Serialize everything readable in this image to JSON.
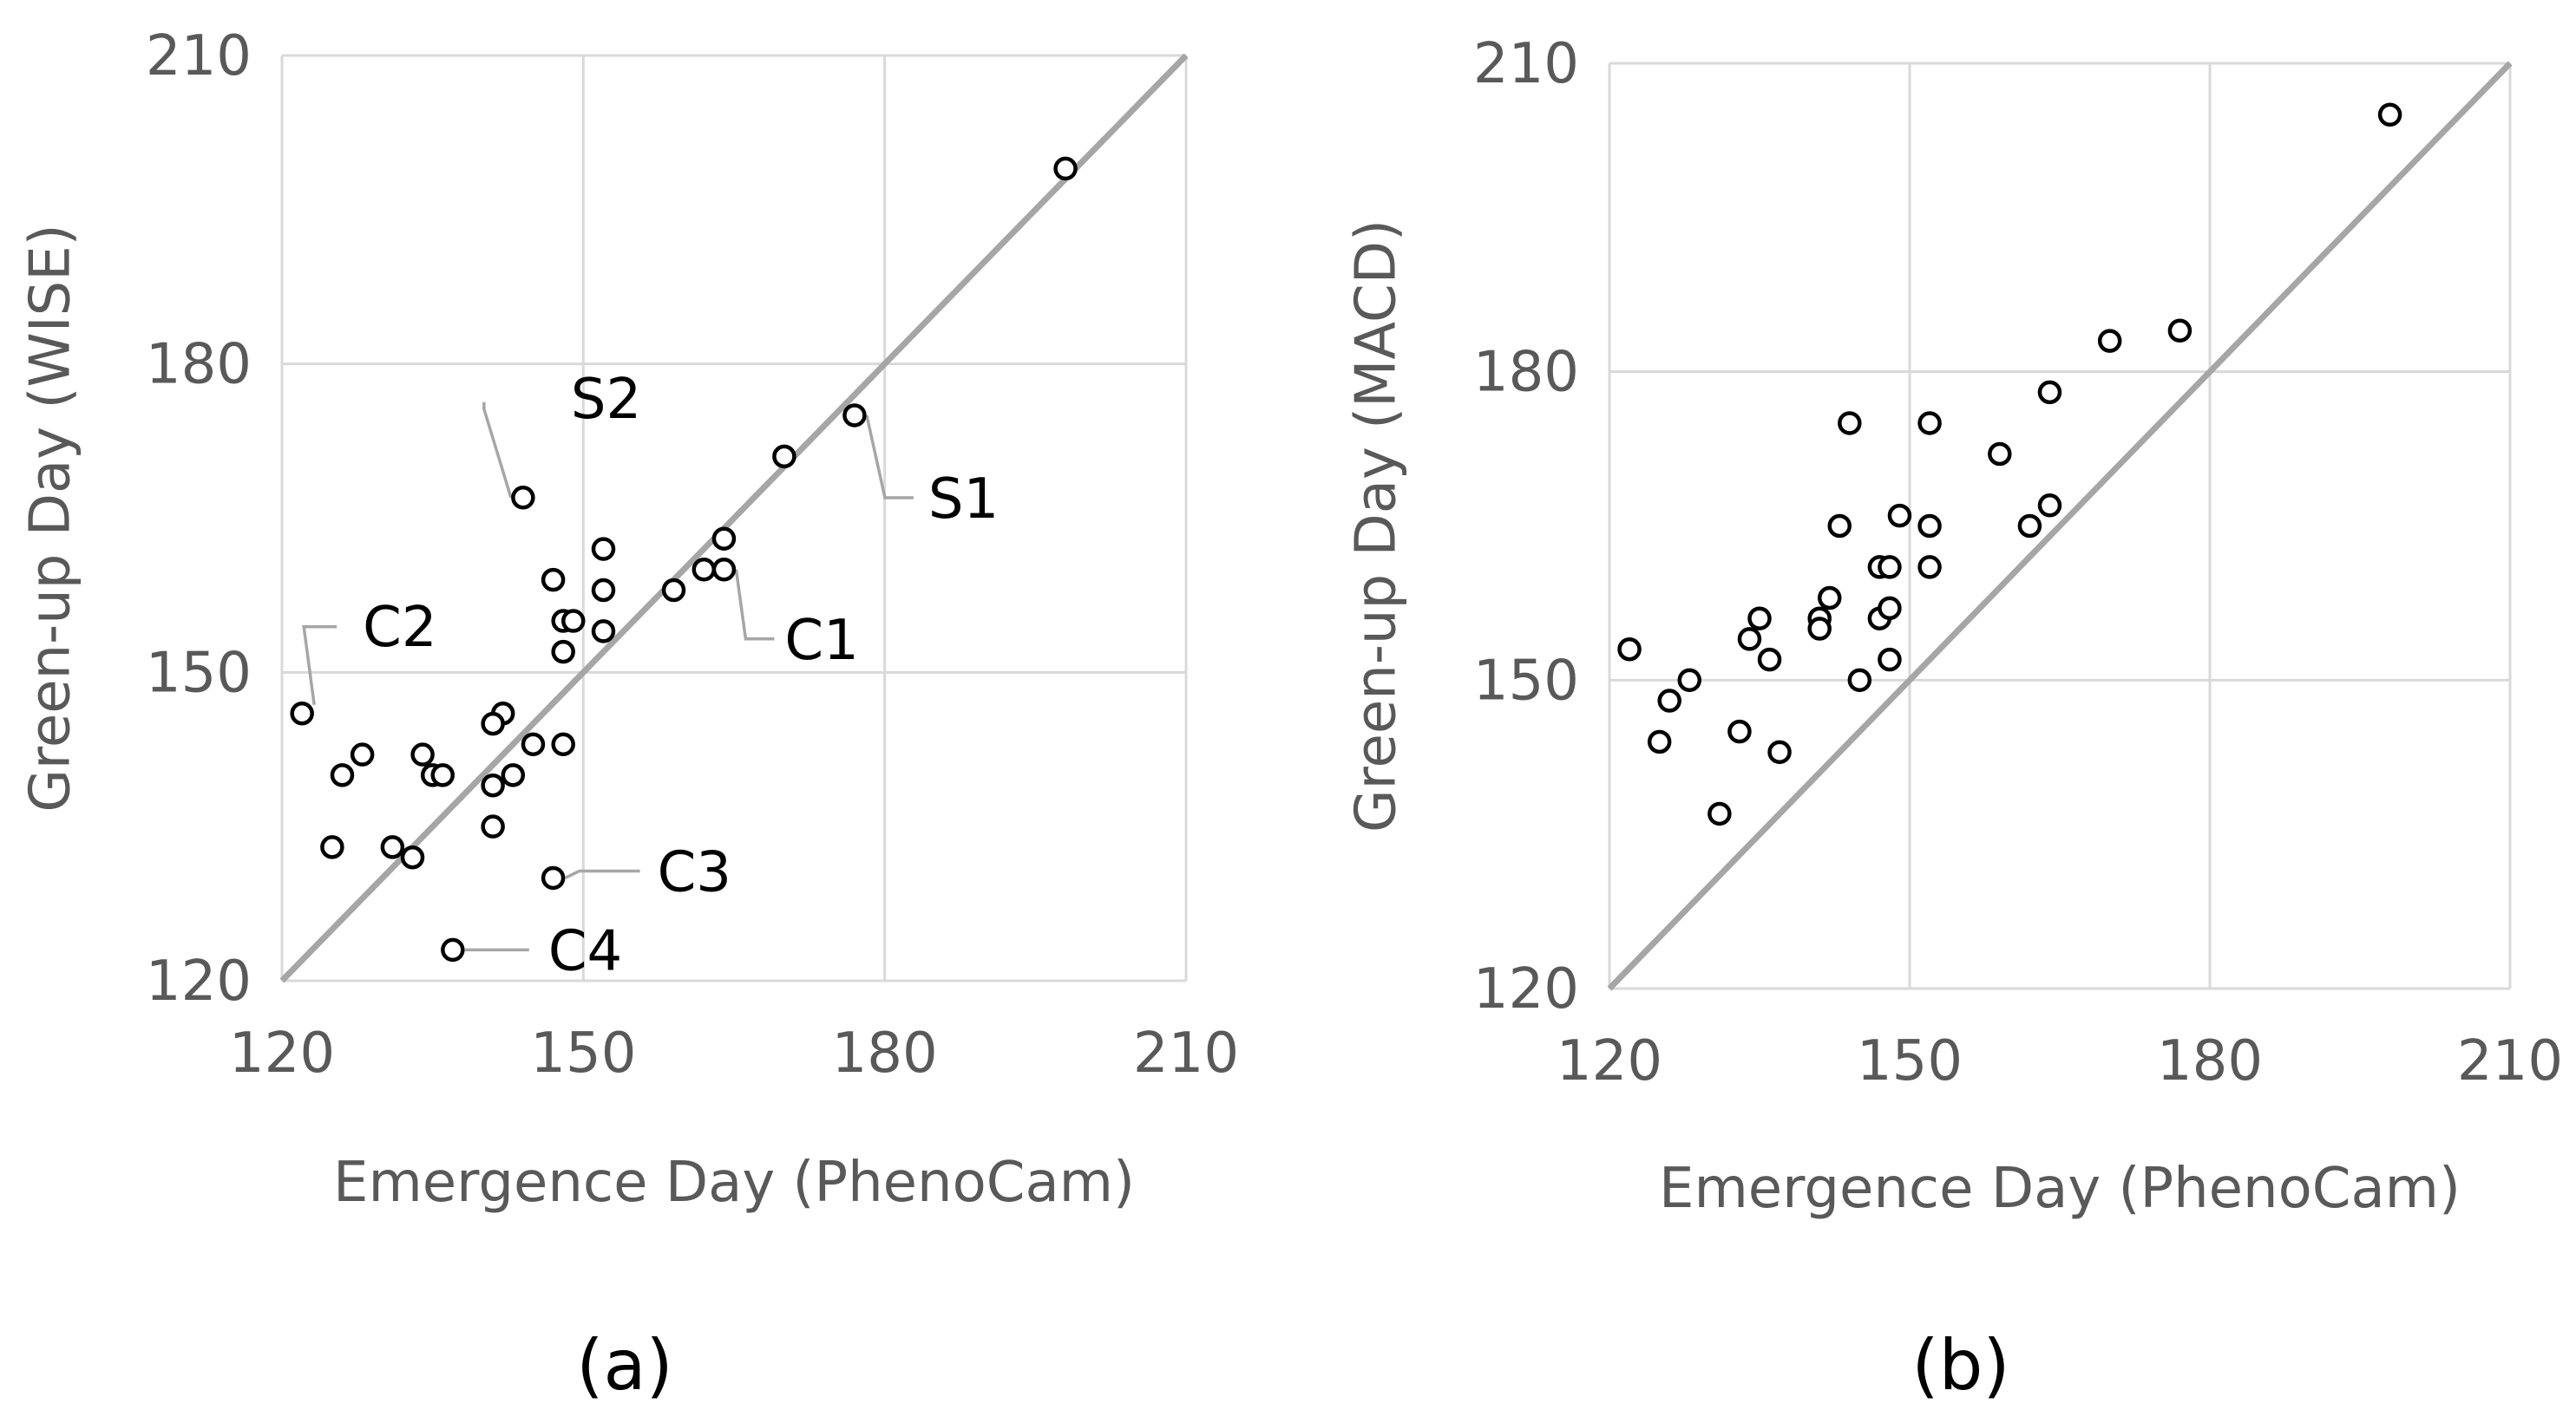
{
  "chart_data": [
    {
      "type": "scatter",
      "panel_label": "(a)",
      "xlabel": "Emergence Day (PhenoCam)",
      "ylabel": "Green-up Day (WISE)",
      "xlim": [
        120,
        210
      ],
      "ylim": [
        120,
        210
      ],
      "xticks": [
        120,
        150,
        180,
        210
      ],
      "yticks": [
        120,
        150,
        180,
        210
      ],
      "grid": true,
      "reference_line": "1:1",
      "series": [
        {
          "name": "sites",
          "points": [
            [
              198,
              199
            ],
            [
              177,
              175
            ],
            [
              170,
              171
            ],
            [
              144,
              167
            ],
            [
              164,
              163
            ],
            [
              152,
              162
            ],
            [
              162,
              160
            ],
            [
              164,
              160
            ],
            [
              159,
              158
            ],
            [
              152,
              158
            ],
            [
              147,
              159
            ],
            [
              148,
              155
            ],
            [
              149,
              155
            ],
            [
              152,
              154
            ],
            [
              148,
              152
            ],
            [
              122,
              146
            ],
            [
              142,
              146
            ],
            [
              141,
              145
            ],
            [
              128,
              142
            ],
            [
              134,
              142
            ],
            [
              126,
              140
            ],
            [
              135,
              140
            ],
            [
              136,
              140
            ],
            [
              143,
              140
            ],
            [
              145,
              143
            ],
            [
              148,
              143
            ],
            [
              141,
              139
            ],
            [
              141,
              135
            ],
            [
              125,
              133
            ],
            [
              131,
              133
            ],
            [
              133,
              132
            ],
            [
              147,
              130
            ],
            [
              137,
              123
            ]
          ]
        }
      ],
      "annotations": [
        {
          "label": "S2",
          "point": [
            144,
            167
          ]
        },
        {
          "label": "S1",
          "point": [
            177,
            175
          ]
        },
        {
          "label": "C1",
          "point": [
            164,
            160
          ]
        },
        {
          "label": "C2",
          "point": [
            122,
            146
          ]
        },
        {
          "label": "C3",
          "point": [
            147,
            130
          ]
        },
        {
          "label": "C4",
          "point": [
            137,
            123
          ]
        }
      ]
    },
    {
      "type": "scatter",
      "panel_label": "(b)",
      "xlabel": "Emergence Day (PhenoCam)",
      "ylabel": "Green-up Day (MACD)",
      "xlim": [
        120,
        210
      ],
      "ylim": [
        120,
        210
      ],
      "xticks": [
        120,
        150,
        180,
        210
      ],
      "yticks": [
        120,
        150,
        180,
        210
      ],
      "grid": true,
      "reference_line": "1:1",
      "series": [
        {
          "name": "sites",
          "points": [
            [
              198,
              205
            ],
            [
              177,
              184
            ],
            [
              170,
              183
            ],
            [
              164,
              178
            ],
            [
              144,
              175
            ],
            [
              152,
              175
            ],
            [
              159,
              172
            ],
            [
              149,
              166
            ],
            [
              164,
              167
            ],
            [
              143,
              165
            ],
            [
              152,
              165
            ],
            [
              162,
              165
            ],
            [
              147,
              161
            ],
            [
              148,
              161
            ],
            [
              152,
              161
            ],
            [
              142,
              158
            ],
            [
              135,
              156
            ],
            [
              141,
              156
            ],
            [
              147,
              156
            ],
            [
              148,
              157
            ],
            [
              134,
              154
            ],
            [
              141,
              155
            ],
            [
              122,
              153
            ],
            [
              136,
              152
            ],
            [
              148,
              152
            ],
            [
              128,
              150
            ],
            [
              145,
              150
            ],
            [
              126,
              148
            ],
            [
              133,
              145
            ],
            [
              125,
              144
            ],
            [
              137,
              143
            ],
            [
              131,
              137
            ]
          ]
        }
      ],
      "annotations": []
    }
  ]
}
